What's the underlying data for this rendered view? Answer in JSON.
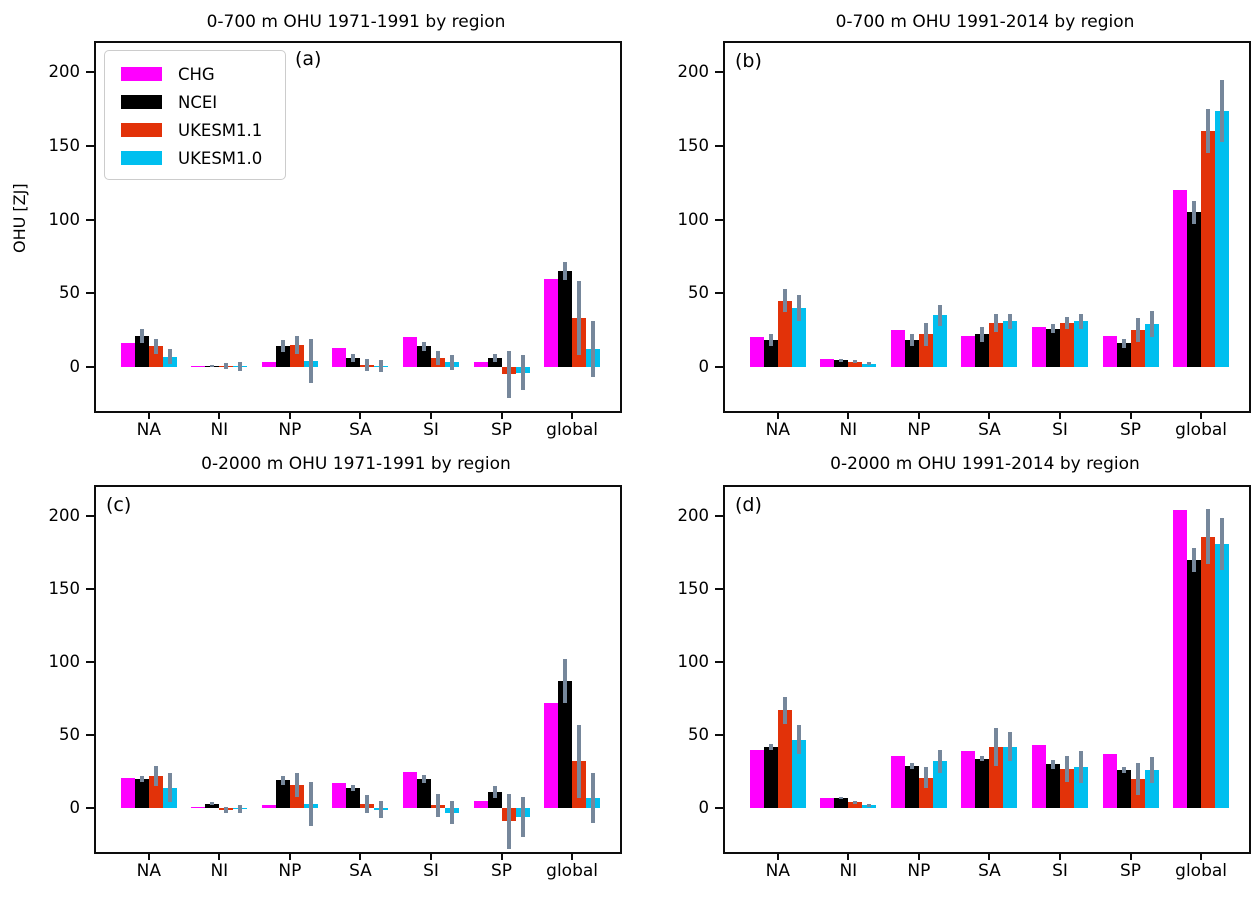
{
  "legend": {
    "entries": [
      {
        "label": "CHG",
        "color": "#ff00ff"
      },
      {
        "label": "NCEI",
        "color": "#000000"
      },
      {
        "label": "UKESM1.1",
        "color": "#e23209"
      },
      {
        "label": "UKESM1.0",
        "color": "#00bfef"
      }
    ]
  },
  "axis": {
    "ylabel": "OHU [ZJ]",
    "categories": [
      "NA",
      "NI",
      "NP",
      "SA",
      "SI",
      "SP",
      "global"
    ],
    "yticks": [
      0,
      50,
      100,
      150,
      200
    ],
    "ylim": [
      -30,
      220
    ],
    "grid": false,
    "errorbar_color": "#76879b",
    "legend_position": "upper-left-panel-a"
  },
  "chart_data": [
    {
      "type": "bar",
      "panel_label": "(a)",
      "title": "0-700 m OHU 1971-1991 by region",
      "ylabel": "OHU [ZJ]",
      "categories": [
        "NA",
        "NI",
        "NP",
        "SA",
        "SI",
        "SP",
        "global"
      ],
      "yticks": [
        0,
        50,
        100,
        150,
        200
      ],
      "ylim": [
        -30,
        220
      ],
      "legend": true,
      "series": [
        {
          "name": "CHG",
          "color": "#ff00ff",
          "values": [
            16,
            0.5,
            3,
            12.5,
            20,
            3,
            60
          ],
          "errors": null
        },
        {
          "name": "NCEI",
          "color": "#000000",
          "values": [
            21,
            0.5,
            14,
            6,
            14,
            6,
            65
          ],
          "errors": [
            5,
            0.5,
            4,
            3,
            3,
            3,
            6
          ]
        },
        {
          "name": "UKESM1.1",
          "color": "#e23209",
          "values": [
            14,
            0.5,
            15,
            1,
            6,
            -5,
            33
          ],
          "errors": [
            5,
            2,
            6,
            4,
            5,
            16,
            25
          ]
        },
        {
          "name": "UKESM1.0",
          "color": "#00bfef",
          "values": [
            7,
            0.5,
            4,
            0.5,
            3,
            -4,
            12
          ],
          "errors": [
            5,
            3,
            15,
            4,
            5,
            12,
            19
          ]
        }
      ]
    },
    {
      "type": "bar",
      "panel_label": "(b)",
      "title": "0-700 m OHU 1991-2014 by region",
      "ylabel": "",
      "categories": [
        "NA",
        "NI",
        "NP",
        "SA",
        "SI",
        "SP",
        "global"
      ],
      "yticks": [
        0,
        50,
        100,
        150,
        200
      ],
      "ylim": [
        -30,
        220
      ],
      "legend": false,
      "series": [
        {
          "name": "CHG",
          "color": "#ff00ff",
          "values": [
            20,
            5,
            25,
            21,
            27,
            21,
            120
          ],
          "errors": null
        },
        {
          "name": "NCEI",
          "color": "#000000",
          "values": [
            18,
            4.5,
            18,
            22,
            26,
            16,
            105
          ],
          "errors": [
            4,
            1,
            4,
            5,
            3,
            3,
            8
          ]
        },
        {
          "name": "UKESM1.1",
          "color": "#e23209",
          "values": [
            45,
            3.5,
            22,
            30,
            30,
            25,
            160
          ],
          "errors": [
            8,
            1,
            8,
            6,
            4,
            8,
            15
          ]
        },
        {
          "name": "UKESM1.0",
          "color": "#00bfef",
          "values": [
            40,
            2,
            35,
            31,
            31,
            29,
            174
          ],
          "errors": [
            9,
            1,
            7,
            5,
            5,
            9,
            21
          ]
        }
      ]
    },
    {
      "type": "bar",
      "panel_label": "(c)",
      "title": "0-2000 m OHU 1971-1991 by region",
      "ylabel": "",
      "categories": [
        "NA",
        "NI",
        "NP",
        "SA",
        "SI",
        "SP",
        "global"
      ],
      "yticks": [
        0,
        50,
        100,
        150,
        200
      ],
      "ylim": [
        -30,
        220
      ],
      "legend": false,
      "series": [
        {
          "name": "CHG",
          "color": "#ff00ff",
          "values": [
            21,
            0.5,
            2,
            17,
            25,
            5,
            72
          ],
          "errors": null
        },
        {
          "name": "NCEI",
          "color": "#000000",
          "values": [
            20,
            3,
            19,
            14,
            20,
            11,
            87
          ],
          "errors": [
            2,
            1,
            3,
            2,
            3,
            4,
            15
          ]
        },
        {
          "name": "UKESM1.1",
          "color": "#e23209",
          "values": [
            22,
            -1,
            16,
            3,
            2,
            -9,
            32
          ],
          "errors": [
            7,
            2,
            8,
            6,
            8,
            19,
            25
          ]
        },
        {
          "name": "UKESM1.0",
          "color": "#00bfef",
          "values": [
            14,
            -0.5,
            3,
            -1,
            -3,
            -6,
            7
          ],
          "errors": [
            10,
            3,
            15,
            6,
            8,
            14,
            17
          ]
        }
      ]
    },
    {
      "type": "bar",
      "panel_label": "(d)",
      "title": "0-2000 m OHU 1991-2014 by region",
      "ylabel": "",
      "categories": [
        "NA",
        "NI",
        "NP",
        "SA",
        "SI",
        "SP",
        "global"
      ],
      "yticks": [
        0,
        50,
        100,
        150,
        200
      ],
      "ylim": [
        -30,
        220
      ],
      "legend": false,
      "series": [
        {
          "name": "CHG",
          "color": "#ff00ff",
          "values": [
            40,
            7,
            36,
            39,
            43,
            37,
            204
          ],
          "errors": null
        },
        {
          "name": "NCEI",
          "color": "#000000",
          "values": [
            42,
            7,
            29,
            34,
            30,
            26,
            170
          ],
          "errors": [
            2,
            0.5,
            2,
            2,
            3,
            2,
            8
          ]
        },
        {
          "name": "UKESM1.1",
          "color": "#e23209",
          "values": [
            67,
            4,
            21,
            42,
            27,
            20,
            186
          ],
          "errors": [
            9,
            1,
            7,
            13,
            9,
            11,
            19
          ]
        },
        {
          "name": "UKESM1.0",
          "color": "#00bfef",
          "values": [
            47,
            2,
            32,
            42,
            28,
            26,
            181
          ],
          "errors": [
            10,
            1,
            8,
            10,
            11,
            9,
            18
          ]
        }
      ]
    }
  ]
}
